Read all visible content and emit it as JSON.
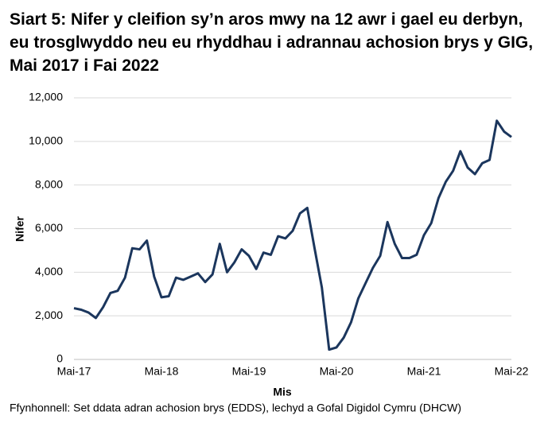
{
  "chart_data": {
    "type": "line",
    "title": "Siart 5: Nifer y cleifion sy’n aros mwy na 12 awr i gael eu derbyn, eu trosglwyddo neu eu rhyddhau i adrannau achosion brys y GIG, Mai 2017 i Fai 2022",
    "x_label": "Mis",
    "y_label": "Nifer",
    "source": "Ffynhonnell: Set ddata adran achosion brys (EDDS), lechyd a Gofal Digidol Cymru (DHCW)",
    "categories": [
      "Mai-17",
      null,
      null,
      null,
      null,
      null,
      null,
      null,
      null,
      null,
      null,
      null,
      "Mai-18",
      null,
      null,
      null,
      null,
      null,
      null,
      null,
      null,
      null,
      null,
      null,
      "Mai-19",
      null,
      null,
      null,
      null,
      null,
      null,
      null,
      null,
      null,
      null,
      null,
      "Mai-20",
      null,
      null,
      null,
      null,
      null,
      null,
      null,
      null,
      null,
      null,
      null,
      "Mai-21",
      null,
      null,
      null,
      null,
      null,
      null,
      null,
      null,
      null,
      null,
      null,
      "Mai-22"
    ],
    "values": [
      2350,
      2280,
      2150,
      1900,
      2400,
      3050,
      3150,
      3750,
      5100,
      5050,
      5450,
      3800,
      2850,
      2900,
      3750,
      3650,
      3800,
      3950,
      3550,
      3900,
      5300,
      4000,
      4450,
      5050,
      4750,
      4150,
      4900,
      4800,
      5650,
      5550,
      5900,
      6700,
      6950,
      5100,
      3300,
      450,
      550,
      1000,
      1700,
      2800,
      3500,
      4200,
      4750,
      6300,
      5300,
      4650,
      4650,
      4800,
      5700,
      6250,
      7400,
      8150,
      8650,
      9550,
      8800,
      8500,
      9000,
      9150,
      10950,
      10450,
      10200
    ],
    "color": "#1b365d",
    "ylim": [
      0,
      12000
    ],
    "yticks": [
      0,
      {
        "value": 2000,
        "label": "2,000"
      },
      {
        "value": 4000,
        "label": "4,000"
      },
      {
        "value": 6000,
        "label": "6,000"
      },
      {
        "value": 8000,
        "label": "8,000"
      },
      {
        "value": 10000,
        "label": "10,000"
      },
      {
        "value": 12000,
        "label": "12,000"
      }
    ],
    "grid": true
  }
}
